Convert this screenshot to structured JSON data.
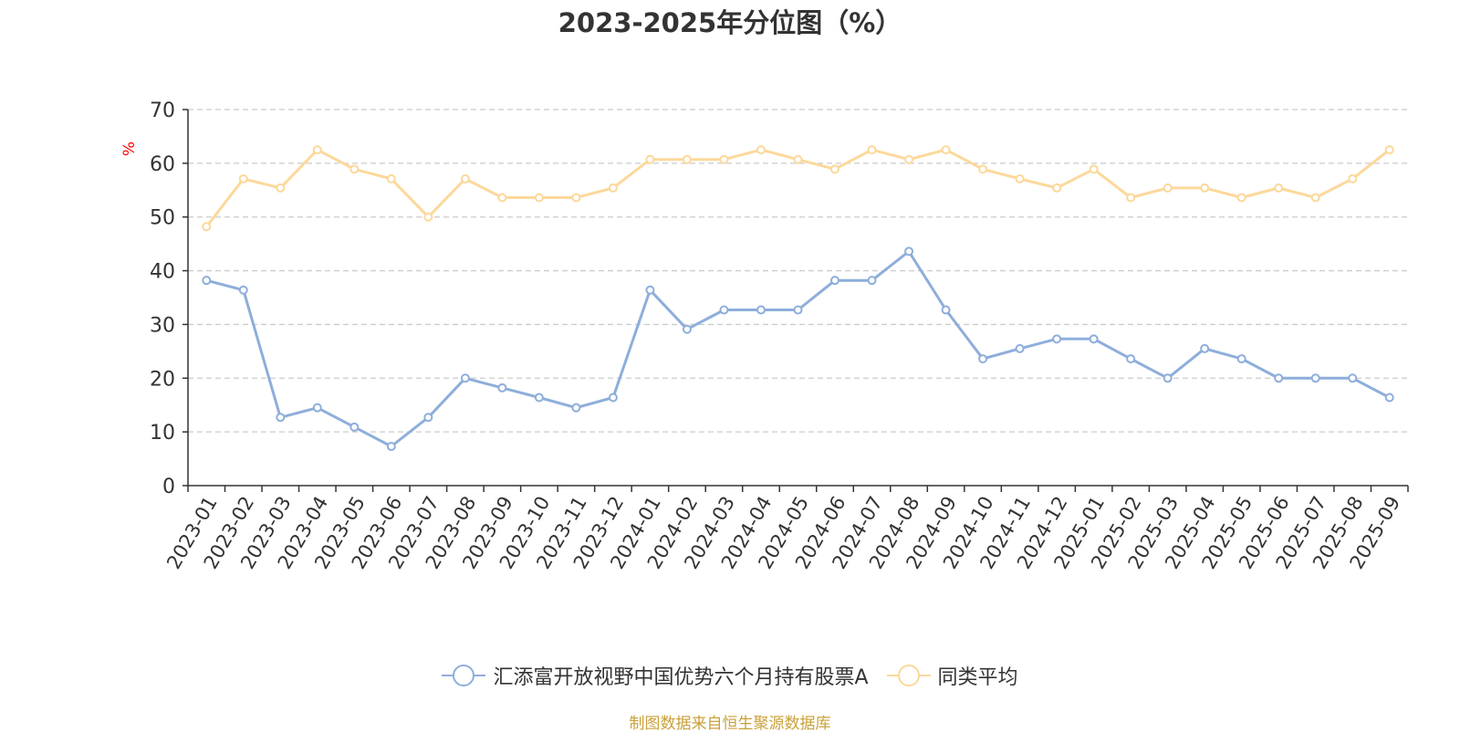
{
  "chart_data": {
    "type": "line",
    "title": "2023-2025年分位图（%）",
    "ylabel": "%",
    "xlabel": "",
    "ylim": [
      0,
      70
    ],
    "yticks": [
      0,
      10,
      20,
      30,
      40,
      50,
      60,
      70
    ],
    "grid": true,
    "legend_position": "bottom",
    "categories": [
      "2023-01",
      "2023-02",
      "2023-03",
      "2023-04",
      "2023-05",
      "2023-06",
      "2023-07",
      "2023-08",
      "2023-09",
      "2023-10",
      "2023-11",
      "2023-12",
      "2024-01",
      "2024-02",
      "2024-03",
      "2024-04",
      "2024-05",
      "2024-06",
      "2024-07",
      "2024-08",
      "2024-09",
      "2024-10",
      "2024-11",
      "2024-12",
      "2025-01",
      "2025-02",
      "2025-03",
      "2025-04",
      "2025-05",
      "2025-06",
      "2025-07",
      "2025-08",
      "2025-09"
    ],
    "series": [
      {
        "name": "汇添富开放视野中国优势六个月持有股票A",
        "color": "#8eaedb",
        "values": [
          38.2,
          36.4,
          12.7,
          14.5,
          10.9,
          7.3,
          12.7,
          20.0,
          18.2,
          16.4,
          14.5,
          16.4,
          36.4,
          29.1,
          32.7,
          32.7,
          32.7,
          38.2,
          38.2,
          43.6,
          32.7,
          23.6,
          25.5,
          27.3,
          27.3,
          23.6,
          20.0,
          25.5,
          23.6,
          20.0,
          20.0,
          20.0,
          16.4
        ]
      },
      {
        "name": "同类平均",
        "color": "#fcd89a",
        "values": [
          48.2,
          57.1,
          55.4,
          62.5,
          58.9,
          57.1,
          50.0,
          57.1,
          53.6,
          53.6,
          53.6,
          55.4,
          60.7,
          60.7,
          60.7,
          62.5,
          60.7,
          58.9,
          62.5,
          60.7,
          62.5,
          58.9,
          57.1,
          55.4,
          58.9,
          53.6,
          55.4,
          55.4,
          53.6,
          55.4,
          53.6,
          57.1,
          62.5
        ]
      }
    ]
  },
  "footer": {
    "source": "制图数据来自恒生聚源数据库",
    "source_color": "#c9a13a"
  },
  "colors": {
    "axis": "#333333",
    "grid": "#cccccc",
    "ylabel": "#ff0000"
  }
}
